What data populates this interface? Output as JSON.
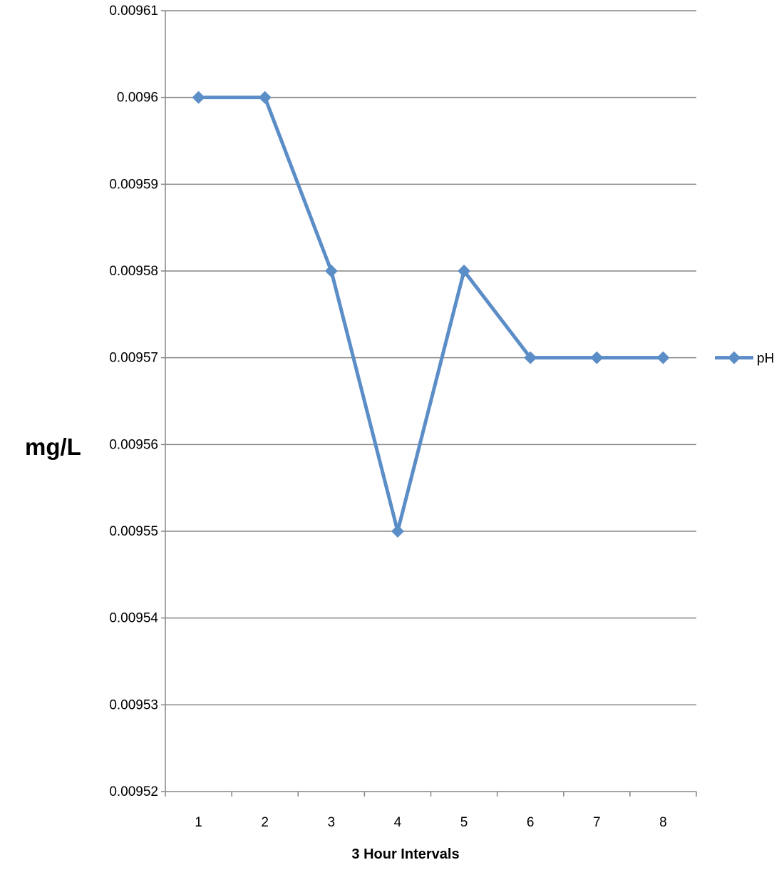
{
  "chart_data": {
    "type": "line",
    "x": [
      1,
      2,
      3,
      4,
      5,
      6,
      7,
      8
    ],
    "categories": [
      "1",
      "2",
      "3",
      "4",
      "5",
      "6",
      "7",
      "8"
    ],
    "series": [
      {
        "name": "pH",
        "values": [
          0.0096,
          0.0096,
          0.00958,
          0.00955,
          0.00958,
          0.00957,
          0.00957,
          0.00957
        ],
        "color": "#5B8DC7"
      }
    ],
    "title": "",
    "xlabel": "3 Hour Intervals",
    "ylabel": "mg/L",
    "ylim": [
      0.00952,
      0.00961
    ],
    "yticks": [
      0.00952,
      0.00953,
      0.00954,
      0.00955,
      0.00956,
      0.00957,
      0.00958,
      0.00959,
      0.0096,
      0.00961
    ],
    "ytick_labels": [
      "0.00952",
      "0.00953",
      "0.00954",
      "0.00955",
      "0.00956",
      "0.00957",
      "0.00958",
      "0.00959",
      "0.0096",
      "0.00961"
    ],
    "grid": true,
    "legend_position": "right",
    "gridline_color": "#868686",
    "axis_color": "#868686"
  }
}
